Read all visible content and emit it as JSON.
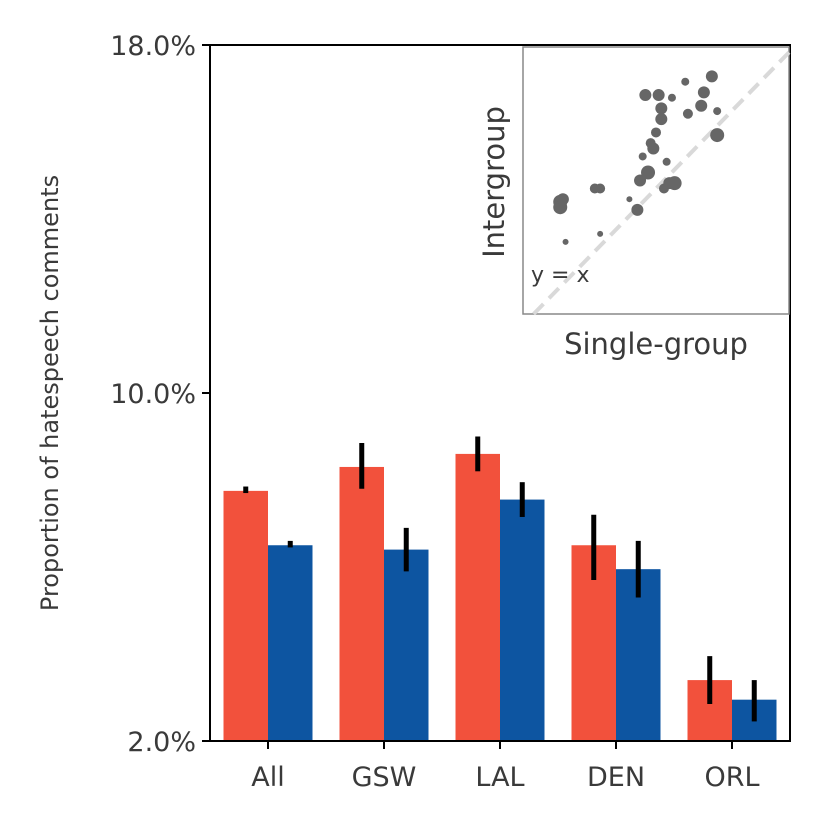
{
  "chart_data": [
    {
      "type": "bar",
      "title": "",
      "xlabel": "",
      "ylabel": "Proportion of hatespeech comments",
      "ylim": [
        2.0,
        18.0
      ],
      "ytick_values": [
        2.0,
        10.0,
        18.0
      ],
      "ytick_labels": [
        "2.0%",
        "10.0%",
        "18.0%"
      ],
      "categories": [
        "All",
        "GSW",
        "LAL",
        "DEN",
        "ORL"
      ],
      "series": [
        {
          "name": "Single-group",
          "color": "#f2513c",
          "values": [
            7.75,
            8.3,
            8.6,
            6.5,
            3.4
          ],
          "err_low": [
            7.7,
            7.8,
            8.2,
            5.7,
            2.85
          ],
          "err_high": [
            7.85,
            8.85,
            9.0,
            7.2,
            3.95
          ]
        },
        {
          "name": "Intergroup",
          "color": "#0d55a1",
          "values": [
            6.5,
            6.4,
            7.55,
            5.95,
            2.95
          ],
          "err_low": [
            6.45,
            5.9,
            7.15,
            5.3,
            2.45
          ],
          "err_high": [
            6.6,
            6.9,
            7.95,
            6.6,
            3.4
          ]
        }
      ]
    },
    {
      "type": "scatter",
      "title": "",
      "xlabel": "Single-group",
      "ylabel": "Intergroup",
      "xlim": [
        0,
        1
      ],
      "ylim": [
        0,
        1
      ],
      "reference_line": {
        "label": "y = x",
        "color": "#d9d9d9",
        "style": "dashed"
      },
      "point_color": "#666666",
      "points": [
        {
          "x": 0.14,
          "y": 0.4,
          "s": 7
        },
        {
          "x": 0.14,
          "y": 0.42,
          "s": 7
        },
        {
          "x": 0.15,
          "y": 0.43,
          "s": 6
        },
        {
          "x": 0.16,
          "y": 0.27,
          "s": 3
        },
        {
          "x": 0.27,
          "y": 0.47,
          "s": 5
        },
        {
          "x": 0.29,
          "y": 0.47,
          "s": 5
        },
        {
          "x": 0.29,
          "y": 0.3,
          "s": 3
        },
        {
          "x": 0.4,
          "y": 0.43,
          "s": 3
        },
        {
          "x": 0.43,
          "y": 0.39,
          "s": 6
        },
        {
          "x": 0.44,
          "y": 0.5,
          "s": 6
        },
        {
          "x": 0.45,
          "y": 0.59,
          "s": 4
        },
        {
          "x": 0.46,
          "y": 0.82,
          "s": 6
        },
        {
          "x": 0.47,
          "y": 0.53,
          "s": 7
        },
        {
          "x": 0.48,
          "y": 0.64,
          "s": 5
        },
        {
          "x": 0.49,
          "y": 0.62,
          "s": 6
        },
        {
          "x": 0.5,
          "y": 0.68,
          "s": 5
        },
        {
          "x": 0.51,
          "y": 0.82,
          "s": 6
        },
        {
          "x": 0.52,
          "y": 0.73,
          "s": 6
        },
        {
          "x": 0.52,
          "y": 0.77,
          "s": 6
        },
        {
          "x": 0.53,
          "y": 0.47,
          "s": 5
        },
        {
          "x": 0.54,
          "y": 0.57,
          "s": 4
        },
        {
          "x": 0.55,
          "y": 0.49,
          "s": 6
        },
        {
          "x": 0.56,
          "y": 0.81,
          "s": 4
        },
        {
          "x": 0.57,
          "y": 0.49,
          "s": 7
        },
        {
          "x": 0.61,
          "y": 0.87,
          "s": 4
        },
        {
          "x": 0.62,
          "y": 0.75,
          "s": 5
        },
        {
          "x": 0.67,
          "y": 0.78,
          "s": 6
        },
        {
          "x": 0.68,
          "y": 0.83,
          "s": 6
        },
        {
          "x": 0.71,
          "y": 0.89,
          "s": 6
        },
        {
          "x": 0.73,
          "y": 0.67,
          "s": 7
        },
        {
          "x": 0.73,
          "y": 0.76,
          "s": 4
        }
      ]
    }
  ]
}
